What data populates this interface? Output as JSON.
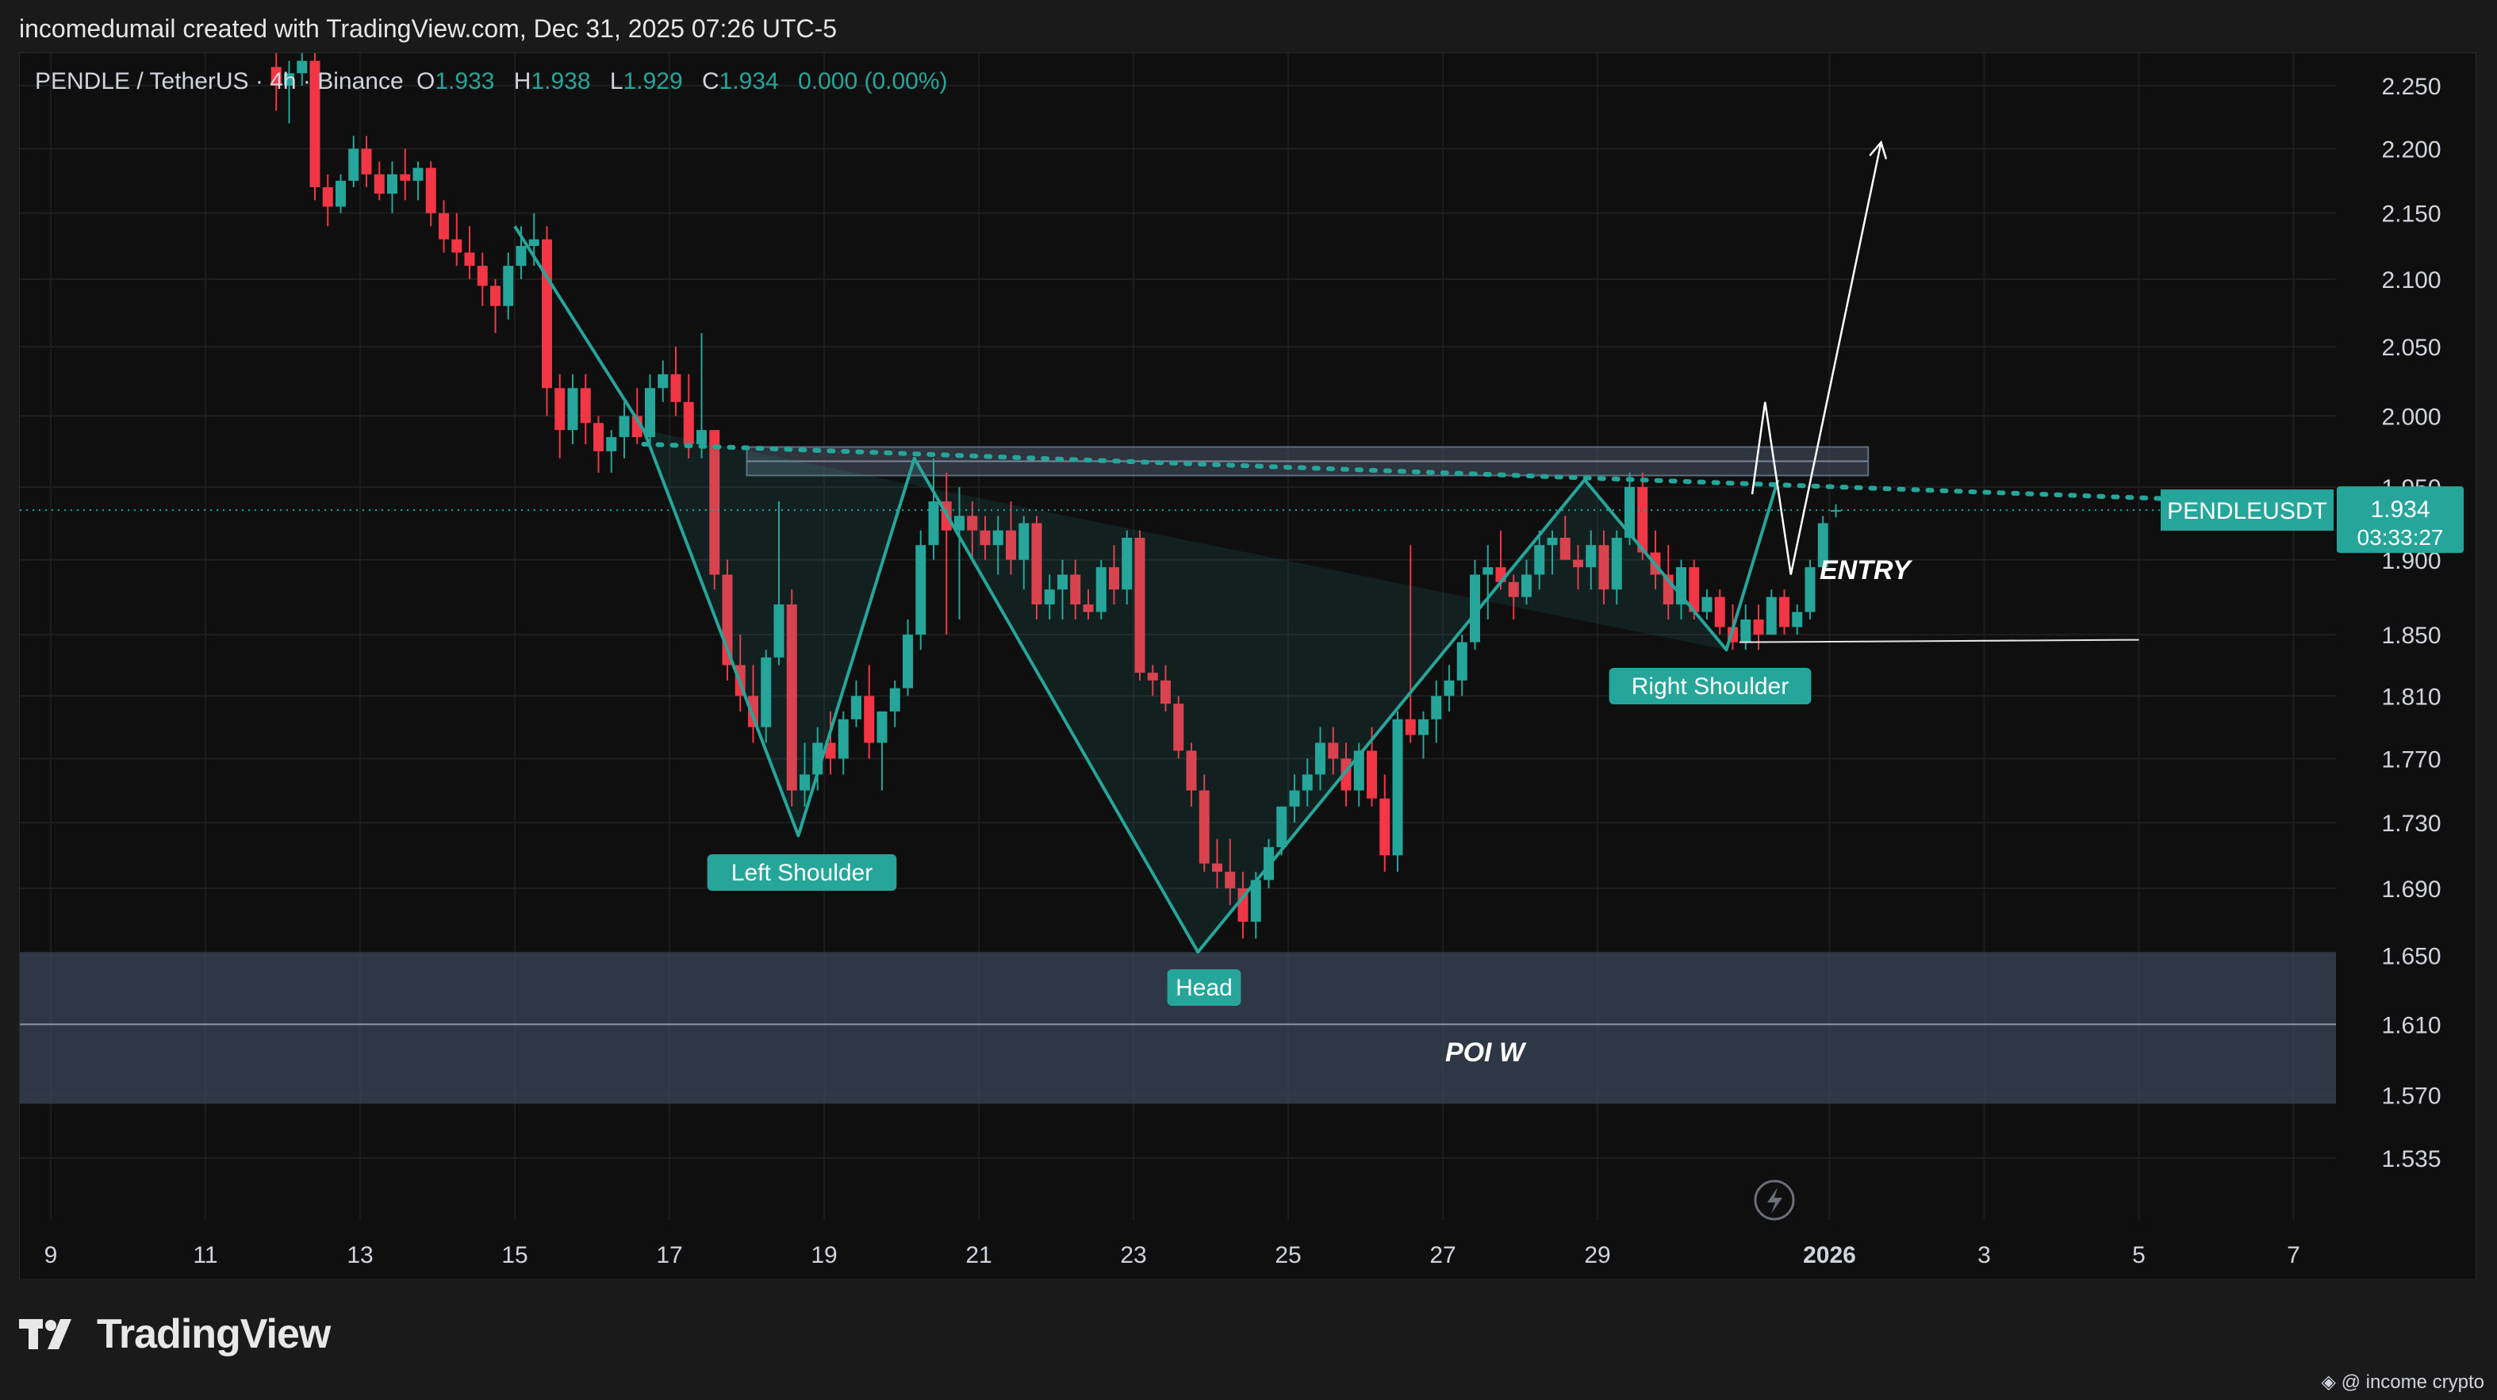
{
  "header": {
    "credit": "incomedumail created with TradingView.com, Dec 31, 2025 07:26 UTC-5"
  },
  "legend": {
    "symbol": "PENDLE / TetherUS · 4h · Binance",
    "o_label": "O",
    "o_value": "1.933",
    "h_label": "H",
    "h_value": "1.938",
    "l_label": "L",
    "l_value": "1.929",
    "c_label": "C",
    "c_value": "1.934",
    "change": "0.000 (0.00%)"
  },
  "price_badge": {
    "ticker": "PENDLEUSDT",
    "price": "1.934",
    "countdown": "03:33:27"
  },
  "colors": {
    "up": "#26a69a",
    "down": "#f23645",
    "pattern": "#26a69a",
    "zone": "#3a4658",
    "background": "#0f0f0f"
  },
  "annotations": {
    "left_shoulder": "Left Shoulder",
    "head": "Head",
    "right_shoulder": "Right Shoulder",
    "entry": "ENTRY",
    "poi": "POI W"
  },
  "footer": {
    "brand": "TradingView",
    "watermark": "@ income crypto"
  },
  "chart_data": {
    "type": "candlestick",
    "title": "",
    "y_axis": {
      "scale": "log",
      "ticks": [
        "2.250",
        "2.200",
        "2.150",
        "2.100",
        "2.050",
        "2.000",
        "1.950",
        "1.900",
        "1.850",
        "1.810",
        "1.770",
        "1.730",
        "1.690",
        "1.650",
        "1.610",
        "1.570",
        "1.535"
      ],
      "range": [
        1.51,
        2.28
      ]
    },
    "x_axis": {
      "ticks": [
        "9",
        "11",
        "13",
        "15",
        "17",
        "19",
        "21",
        "23",
        "25",
        "27",
        "29",
        "2026",
        "3",
        "5",
        "7"
      ]
    },
    "candles": [
      {
        "d": "Dec 11 20:00",
        "o": 2.265,
        "h": 2.28,
        "l": 2.23,
        "c": 2.25
      },
      {
        "d": "Dec 12 00:00",
        "o": 2.25,
        "h": 2.27,
        "l": 2.22,
        "c": 2.26
      },
      {
        "d": "Dec 12 04:00",
        "o": 2.26,
        "h": 2.29,
        "l": 2.25,
        "c": 2.27
      },
      {
        "d": "Dec 12 08:00",
        "o": 2.27,
        "h": 2.28,
        "l": 2.16,
        "c": 2.17
      },
      {
        "d": "Dec 12 12:00",
        "o": 2.17,
        "h": 2.18,
        "l": 2.14,
        "c": 2.155
      },
      {
        "d": "Dec 12 16:00",
        "o": 2.155,
        "h": 2.18,
        "l": 2.15,
        "c": 2.175
      },
      {
        "d": "Dec 12 20:00",
        "o": 2.175,
        "h": 2.21,
        "l": 2.17,
        "c": 2.2
      },
      {
        "d": "Dec 13 00:00",
        "o": 2.2,
        "h": 2.21,
        "l": 2.17,
        "c": 2.18
      },
      {
        "d": "Dec 13 04:00",
        "o": 2.18,
        "h": 2.19,
        "l": 2.16,
        "c": 2.165
      },
      {
        "d": "Dec 13 08:00",
        "o": 2.165,
        "h": 2.19,
        "l": 2.15,
        "c": 2.18
      },
      {
        "d": "Dec 13 12:00",
        "o": 2.18,
        "h": 2.2,
        "l": 2.16,
        "c": 2.175
      },
      {
        "d": "Dec 13 16:00",
        "o": 2.175,
        "h": 2.19,
        "l": 2.16,
        "c": 2.185
      },
      {
        "d": "Dec 13 20:00",
        "o": 2.185,
        "h": 2.19,
        "l": 2.14,
        "c": 2.15
      },
      {
        "d": "Dec 14 00:00",
        "o": 2.15,
        "h": 2.16,
        "l": 2.12,
        "c": 2.13
      },
      {
        "d": "Dec 14 04:00",
        "o": 2.13,
        "h": 2.15,
        "l": 2.11,
        "c": 2.12
      },
      {
        "d": "Dec 14 08:00",
        "o": 2.12,
        "h": 2.14,
        "l": 2.1,
        "c": 2.11
      },
      {
        "d": "Dec 14 12:00",
        "o": 2.11,
        "h": 2.12,
        "l": 2.08,
        "c": 2.095
      },
      {
        "d": "Dec 14 16:00",
        "o": 2.095,
        "h": 2.1,
        "l": 2.06,
        "c": 2.08
      },
      {
        "d": "Dec 14 20:00",
        "o": 2.08,
        "h": 2.12,
        "l": 2.07,
        "c": 2.11
      },
      {
        "d": "Dec 15 00:00",
        "o": 2.11,
        "h": 2.14,
        "l": 2.1,
        "c": 2.125
      },
      {
        "d": "Dec 15 04:00",
        "o": 2.125,
        "h": 2.15,
        "l": 2.11,
        "c": 2.13
      },
      {
        "d": "Dec 15 08:00",
        "o": 2.13,
        "h": 2.14,
        "l": 2.0,
        "c": 2.02
      },
      {
        "d": "Dec 15 12:00",
        "o": 2.02,
        "h": 2.03,
        "l": 1.97,
        "c": 1.99
      },
      {
        "d": "Dec 15 16:00",
        "o": 1.99,
        "h": 2.03,
        "l": 1.98,
        "c": 2.02
      },
      {
        "d": "Dec 15 20:00",
        "o": 2.02,
        "h": 2.03,
        "l": 1.98,
        "c": 1.995
      },
      {
        "d": "Dec 16 00:00",
        "o": 1.995,
        "h": 2.0,
        "l": 1.96,
        "c": 1.975
      },
      {
        "d": "Dec 16 04:00",
        "o": 1.975,
        "h": 1.99,
        "l": 1.96,
        "c": 1.985
      },
      {
        "d": "Dec 16 08:00",
        "o": 1.985,
        "h": 2.01,
        "l": 1.97,
        "c": 2.0
      },
      {
        "d": "Dec 16 12:00",
        "o": 2.0,
        "h": 2.02,
        "l": 1.98,
        "c": 1.985
      },
      {
        "d": "Dec 16 16:00",
        "o": 1.985,
        "h": 2.03,
        "l": 1.98,
        "c": 2.02
      },
      {
        "d": "Dec 16 20:00",
        "o": 2.02,
        "h": 2.04,
        "l": 2.01,
        "c": 2.03
      },
      {
        "d": "Dec 17 00:00",
        "o": 2.03,
        "h": 2.05,
        "l": 2.0,
        "c": 2.01
      },
      {
        "d": "Dec 17 04:00",
        "o": 2.01,
        "h": 2.03,
        "l": 1.97,
        "c": 1.98
      },
      {
        "d": "Dec 17 08:00",
        "o": 1.98,
        "h": 2.06,
        "l": 1.97,
        "c": 1.99
      },
      {
        "d": "Dec 17 12:00",
        "o": 1.99,
        "h": 1.99,
        "l": 1.88,
        "c": 1.89
      },
      {
        "d": "Dec 17 16:00",
        "o": 1.89,
        "h": 1.9,
        "l": 1.82,
        "c": 1.83
      },
      {
        "d": "Dec 17 20:00",
        "o": 1.83,
        "h": 1.85,
        "l": 1.8,
        "c": 1.81
      },
      {
        "d": "Dec 18 00:00",
        "o": 1.81,
        "h": 1.83,
        "l": 1.78,
        "c": 1.79
      },
      {
        "d": "Dec 18 04:00",
        "o": 1.79,
        "h": 1.84,
        "l": 1.78,
        "c": 1.835
      },
      {
        "d": "Dec 18 08:00",
        "o": 1.835,
        "h": 1.94,
        "l": 1.83,
        "c": 1.87
      },
      {
        "d": "Dec 18 12:00",
        "o": 1.87,
        "h": 1.88,
        "l": 1.74,
        "c": 1.75
      },
      {
        "d": "Dec 18 16:00",
        "o": 1.75,
        "h": 1.78,
        "l": 1.74,
        "c": 1.76
      },
      {
        "d": "Dec 18 20:00",
        "o": 1.76,
        "h": 1.79,
        "l": 1.75,
        "c": 1.78
      },
      {
        "d": "Dec 19 00:00",
        "o": 1.78,
        "h": 1.8,
        "l": 1.76,
        "c": 1.77
      },
      {
        "d": "Dec 19 04:00",
        "o": 1.77,
        "h": 1.8,
        "l": 1.76,
        "c": 1.795
      },
      {
        "d": "Dec 19 08:00",
        "o": 1.795,
        "h": 1.82,
        "l": 1.79,
        "c": 1.81
      },
      {
        "d": "Dec 19 12:00",
        "o": 1.81,
        "h": 1.83,
        "l": 1.77,
        "c": 1.78
      },
      {
        "d": "Dec 19 16:00",
        "o": 1.78,
        "h": 1.8,
        "l": 1.75,
        "c": 1.8
      },
      {
        "d": "Dec 19 20:00",
        "o": 1.8,
        "h": 1.82,
        "l": 1.79,
        "c": 1.815
      },
      {
        "d": "Dec 20 00:00",
        "o": 1.815,
        "h": 1.86,
        "l": 1.81,
        "c": 1.85
      },
      {
        "d": "Dec 20 04:00",
        "o": 1.85,
        "h": 1.92,
        "l": 1.84,
        "c": 1.91
      },
      {
        "d": "Dec 20 08:00",
        "o": 1.91,
        "h": 1.97,
        "l": 1.9,
        "c": 1.94
      },
      {
        "d": "Dec 20 12:00",
        "o": 1.94,
        "h": 1.96,
        "l": 1.85,
        "c": 1.92
      },
      {
        "d": "Dec 20 16:00",
        "o": 1.92,
        "h": 1.95,
        "l": 1.86,
        "c": 1.93
      },
      {
        "d": "Dec 20 20:00",
        "o": 1.93,
        "h": 1.94,
        "l": 1.9,
        "c": 1.92
      },
      {
        "d": "Dec 21 00:00",
        "o": 1.92,
        "h": 1.93,
        "l": 1.9,
        "c": 1.91
      },
      {
        "d": "Dec 21 04:00",
        "o": 1.91,
        "h": 1.93,
        "l": 1.89,
        "c": 1.92
      },
      {
        "d": "Dec 21 08:00",
        "o": 1.92,
        "h": 1.94,
        "l": 1.89,
        "c": 1.9
      },
      {
        "d": "Dec 21 12:00",
        "o": 1.9,
        "h": 1.93,
        "l": 1.88,
        "c": 1.925
      },
      {
        "d": "Dec 21 16:00",
        "o": 1.925,
        "h": 1.93,
        "l": 1.86,
        "c": 1.87
      },
      {
        "d": "Dec 21 20:00",
        "o": 1.87,
        "h": 1.89,
        "l": 1.86,
        "c": 1.88
      },
      {
        "d": "Dec 22 00:00",
        "o": 1.88,
        "h": 1.9,
        "l": 1.86,
        "c": 1.89
      },
      {
        "d": "Dec 22 04:00",
        "o": 1.89,
        "h": 1.9,
        "l": 1.86,
        "c": 1.87
      },
      {
        "d": "Dec 22 08:00",
        "o": 1.87,
        "h": 1.88,
        "l": 1.86,
        "c": 1.865
      },
      {
        "d": "Dec 22 12:00",
        "o": 1.865,
        "h": 1.9,
        "l": 1.86,
        "c": 1.895
      },
      {
        "d": "Dec 22 16:00",
        "o": 1.895,
        "h": 1.91,
        "l": 1.87,
        "c": 1.88
      },
      {
        "d": "Dec 22 20:00",
        "o": 1.88,
        "h": 1.92,
        "l": 1.87,
        "c": 1.915
      },
      {
        "d": "Dec 23 00:00",
        "o": 1.915,
        "h": 1.92,
        "l": 1.82,
        "c": 1.825
      },
      {
        "d": "Dec 23 04:00",
        "o": 1.825,
        "h": 1.83,
        "l": 1.81,
        "c": 1.82
      },
      {
        "d": "Dec 23 08:00",
        "o": 1.82,
        "h": 1.83,
        "l": 1.8,
        "c": 1.805
      },
      {
        "d": "Dec 23 12:00",
        "o": 1.805,
        "h": 1.81,
        "l": 1.77,
        "c": 1.775
      },
      {
        "d": "Dec 23 16:00",
        "o": 1.775,
        "h": 1.78,
        "l": 1.74,
        "c": 1.75
      },
      {
        "d": "Dec 23 20:00",
        "o": 1.75,
        "h": 1.76,
        "l": 1.7,
        "c": 1.705
      },
      {
        "d": "Dec 24 00:00",
        "o": 1.705,
        "h": 1.72,
        "l": 1.69,
        "c": 1.7
      },
      {
        "d": "Dec 24 04:00",
        "o": 1.7,
        "h": 1.72,
        "l": 1.68,
        "c": 1.69
      },
      {
        "d": "Dec 24 08:00",
        "o": 1.69,
        "h": 1.7,
        "l": 1.66,
        "c": 1.67
      },
      {
        "d": "Dec 24 12:00",
        "o": 1.67,
        "h": 1.7,
        "l": 1.66,
        "c": 1.695
      },
      {
        "d": "Dec 24 16:00",
        "o": 1.695,
        "h": 1.72,
        "l": 1.69,
        "c": 1.715
      },
      {
        "d": "Dec 24 20:00",
        "o": 1.715,
        "h": 1.74,
        "l": 1.71,
        "c": 1.74
      },
      {
        "d": "Dec 25 00:00",
        "o": 1.74,
        "h": 1.76,
        "l": 1.73,
        "c": 1.75
      },
      {
        "d": "Dec 25 04:00",
        "o": 1.75,
        "h": 1.77,
        "l": 1.74,
        "c": 1.76
      },
      {
        "d": "Dec 25 08:00",
        "o": 1.76,
        "h": 1.79,
        "l": 1.75,
        "c": 1.78
      },
      {
        "d": "Dec 25 12:00",
        "o": 1.78,
        "h": 1.79,
        "l": 1.76,
        "c": 1.77
      },
      {
        "d": "Dec 25 16:00",
        "o": 1.77,
        "h": 1.78,
        "l": 1.74,
        "c": 1.75
      },
      {
        "d": "Dec 25 20:00",
        "o": 1.75,
        "h": 1.78,
        "l": 1.74,
        "c": 1.775
      },
      {
        "d": "Dec 26 00:00",
        "o": 1.775,
        "h": 1.79,
        "l": 1.74,
        "c": 1.745
      },
      {
        "d": "Dec 26 04:00",
        "o": 1.745,
        "h": 1.76,
        "l": 1.7,
        "c": 1.71
      },
      {
        "d": "Dec 26 08:00",
        "o": 1.71,
        "h": 1.8,
        "l": 1.7,
        "c": 1.795
      },
      {
        "d": "Dec 26 12:00",
        "o": 1.795,
        "h": 1.91,
        "l": 1.78,
        "c": 1.785
      },
      {
        "d": "Dec 26 16:00",
        "o": 1.785,
        "h": 1.8,
        "l": 1.77,
        "c": 1.795
      },
      {
        "d": "Dec 26 20:00",
        "o": 1.795,
        "h": 1.82,
        "l": 1.78,
        "c": 1.81
      },
      {
        "d": "Dec 27 00:00",
        "o": 1.81,
        "h": 1.83,
        "l": 1.8,
        "c": 1.82
      },
      {
        "d": "Dec 27 04:00",
        "o": 1.82,
        "h": 1.85,
        "l": 1.81,
        "c": 1.845
      },
      {
        "d": "Dec 27 08:00",
        "o": 1.845,
        "h": 1.9,
        "l": 1.84,
        "c": 1.89
      },
      {
        "d": "Dec 27 12:00",
        "o": 1.89,
        "h": 1.91,
        "l": 1.86,
        "c": 1.895
      },
      {
        "d": "Dec 27 16:00",
        "o": 1.895,
        "h": 1.92,
        "l": 1.88,
        "c": 1.885
      },
      {
        "d": "Dec 27 20:00",
        "o": 1.885,
        "h": 1.89,
        "l": 1.86,
        "c": 1.875
      },
      {
        "d": "Dec 28 00:00",
        "o": 1.875,
        "h": 1.9,
        "l": 1.87,
        "c": 1.89
      },
      {
        "d": "Dec 28 04:00",
        "o": 1.89,
        "h": 1.92,
        "l": 1.88,
        "c": 1.91
      },
      {
        "d": "Dec 28 08:00",
        "o": 1.91,
        "h": 1.92,
        "l": 1.89,
        "c": 1.915
      },
      {
        "d": "Dec 28 12:00",
        "o": 1.915,
        "h": 1.93,
        "l": 1.9,
        "c": 1.9
      },
      {
        "d": "Dec 28 16:00",
        "o": 1.9,
        "h": 1.91,
        "l": 1.88,
        "c": 1.895
      },
      {
        "d": "Dec 28 20:00",
        "o": 1.895,
        "h": 1.92,
        "l": 1.88,
        "c": 1.91
      },
      {
        "d": "Dec 29 00:00",
        "o": 1.91,
        "h": 1.92,
        "l": 1.87,
        "c": 1.88
      },
      {
        "d": "Dec 29 04:00",
        "o": 1.88,
        "h": 1.92,
        "l": 1.87,
        "c": 1.915
      },
      {
        "d": "Dec 29 08:00",
        "o": 1.915,
        "h": 1.96,
        "l": 1.91,
        "c": 1.95
      },
      {
        "d": "Dec 29 12:00",
        "o": 1.95,
        "h": 1.96,
        "l": 1.9,
        "c": 1.905
      },
      {
        "d": "Dec 29 16:00",
        "o": 1.905,
        "h": 1.92,
        "l": 1.88,
        "c": 1.89
      },
      {
        "d": "Dec 29 20:00",
        "o": 1.89,
        "h": 1.91,
        "l": 1.86,
        "c": 1.87
      },
      {
        "d": "Dec 30 00:00",
        "o": 1.87,
        "h": 1.9,
        "l": 1.86,
        "c": 1.895
      },
      {
        "d": "Dec 30 04:00",
        "o": 1.895,
        "h": 1.9,
        "l": 1.86,
        "c": 1.865
      },
      {
        "d": "Dec 30 08:00",
        "o": 1.865,
        "h": 1.88,
        "l": 1.86,
        "c": 1.875
      },
      {
        "d": "Dec 30 12:00",
        "o": 1.875,
        "h": 1.88,
        "l": 1.85,
        "c": 1.855
      },
      {
        "d": "Dec 30 16:00",
        "o": 1.855,
        "h": 1.87,
        "l": 1.84,
        "c": 1.845
      },
      {
        "d": "Dec 30 20:00",
        "o": 1.845,
        "h": 1.87,
        "l": 1.84,
        "c": 1.86
      },
      {
        "d": "Dec 31 00:00",
        "o": 1.86,
        "h": 1.87,
        "l": 1.84,
        "c": 1.85
      },
      {
        "d": "Dec 31 04:00",
        "o": 1.85,
        "h": 1.88,
        "l": 1.85,
        "c": 1.875
      },
      {
        "d": "Dec 31 08:00",
        "o": 1.875,
        "h": 1.88,
        "l": 1.85,
        "c": 1.855
      },
      {
        "d": "Dec 31 12:00",
        "o": 1.855,
        "h": 1.87,
        "l": 1.85,
        "c": 1.865
      },
      {
        "d": "Dec 31 16:00",
        "o": 1.865,
        "h": 1.9,
        "l": 1.86,
        "c": 1.895
      },
      {
        "d": "Dec 31 20:00",
        "o": 1.895,
        "h": 1.93,
        "l": 1.89,
        "c": 1.925
      },
      {
        "d": "Jan 1 00:00",
        "o": 1.933,
        "h": 1.938,
        "l": 1.929,
        "c": 1.934
      }
    ],
    "pattern": {
      "name": "inverse head and shoulders",
      "points": [
        {
          "d": "Dec 15 00:00",
          "price": 2.14
        },
        {
          "d": "Dec 16 16:00",
          "price": 1.99
        },
        {
          "d": "Dec 18 16:00",
          "price": 1.722
        },
        {
          "d": "Dec 20 04:00",
          "price": 1.97
        },
        {
          "d": "Dec 23 20:00",
          "price": 1.652
        },
        {
          "d": "Dec 28 20:00",
          "price": 1.955
        },
        {
          "d": "Dec 30 16:00",
          "price": 1.84
        },
        {
          "d": "Dec 31 08:00",
          "price": 1.955
        }
      ],
      "neckline": [
        {
          "d": "Dec 16 16:00",
          "price": 1.98
        },
        {
          "d": "Jan 5 00:00",
          "price": 1.935
        }
      ]
    },
    "resistance_zone": {
      "from": "Dec 18 00:00",
      "to": "Jan 1 12:00",
      "low": 1.958,
      "high": 1.978
    },
    "poi_zone": {
      "low": 1.565,
      "high": 1.652,
      "mid": 1.61
    },
    "projection": [
      {
        "d": "Dec 31 00:00",
        "price": 1.945
      },
      {
        "d": "Dec 31 04:00",
        "price": 2.01
      },
      {
        "d": "Dec 31 12:00",
        "price": 1.89
      },
      {
        "d": "Jan 1 16:00",
        "price": 2.205
      }
    ],
    "stop_line": {
      "price": 1.845,
      "from": "Dec 30 20:00",
      "to": "Jan 5 00:00"
    },
    "current_price": 1.934
  }
}
